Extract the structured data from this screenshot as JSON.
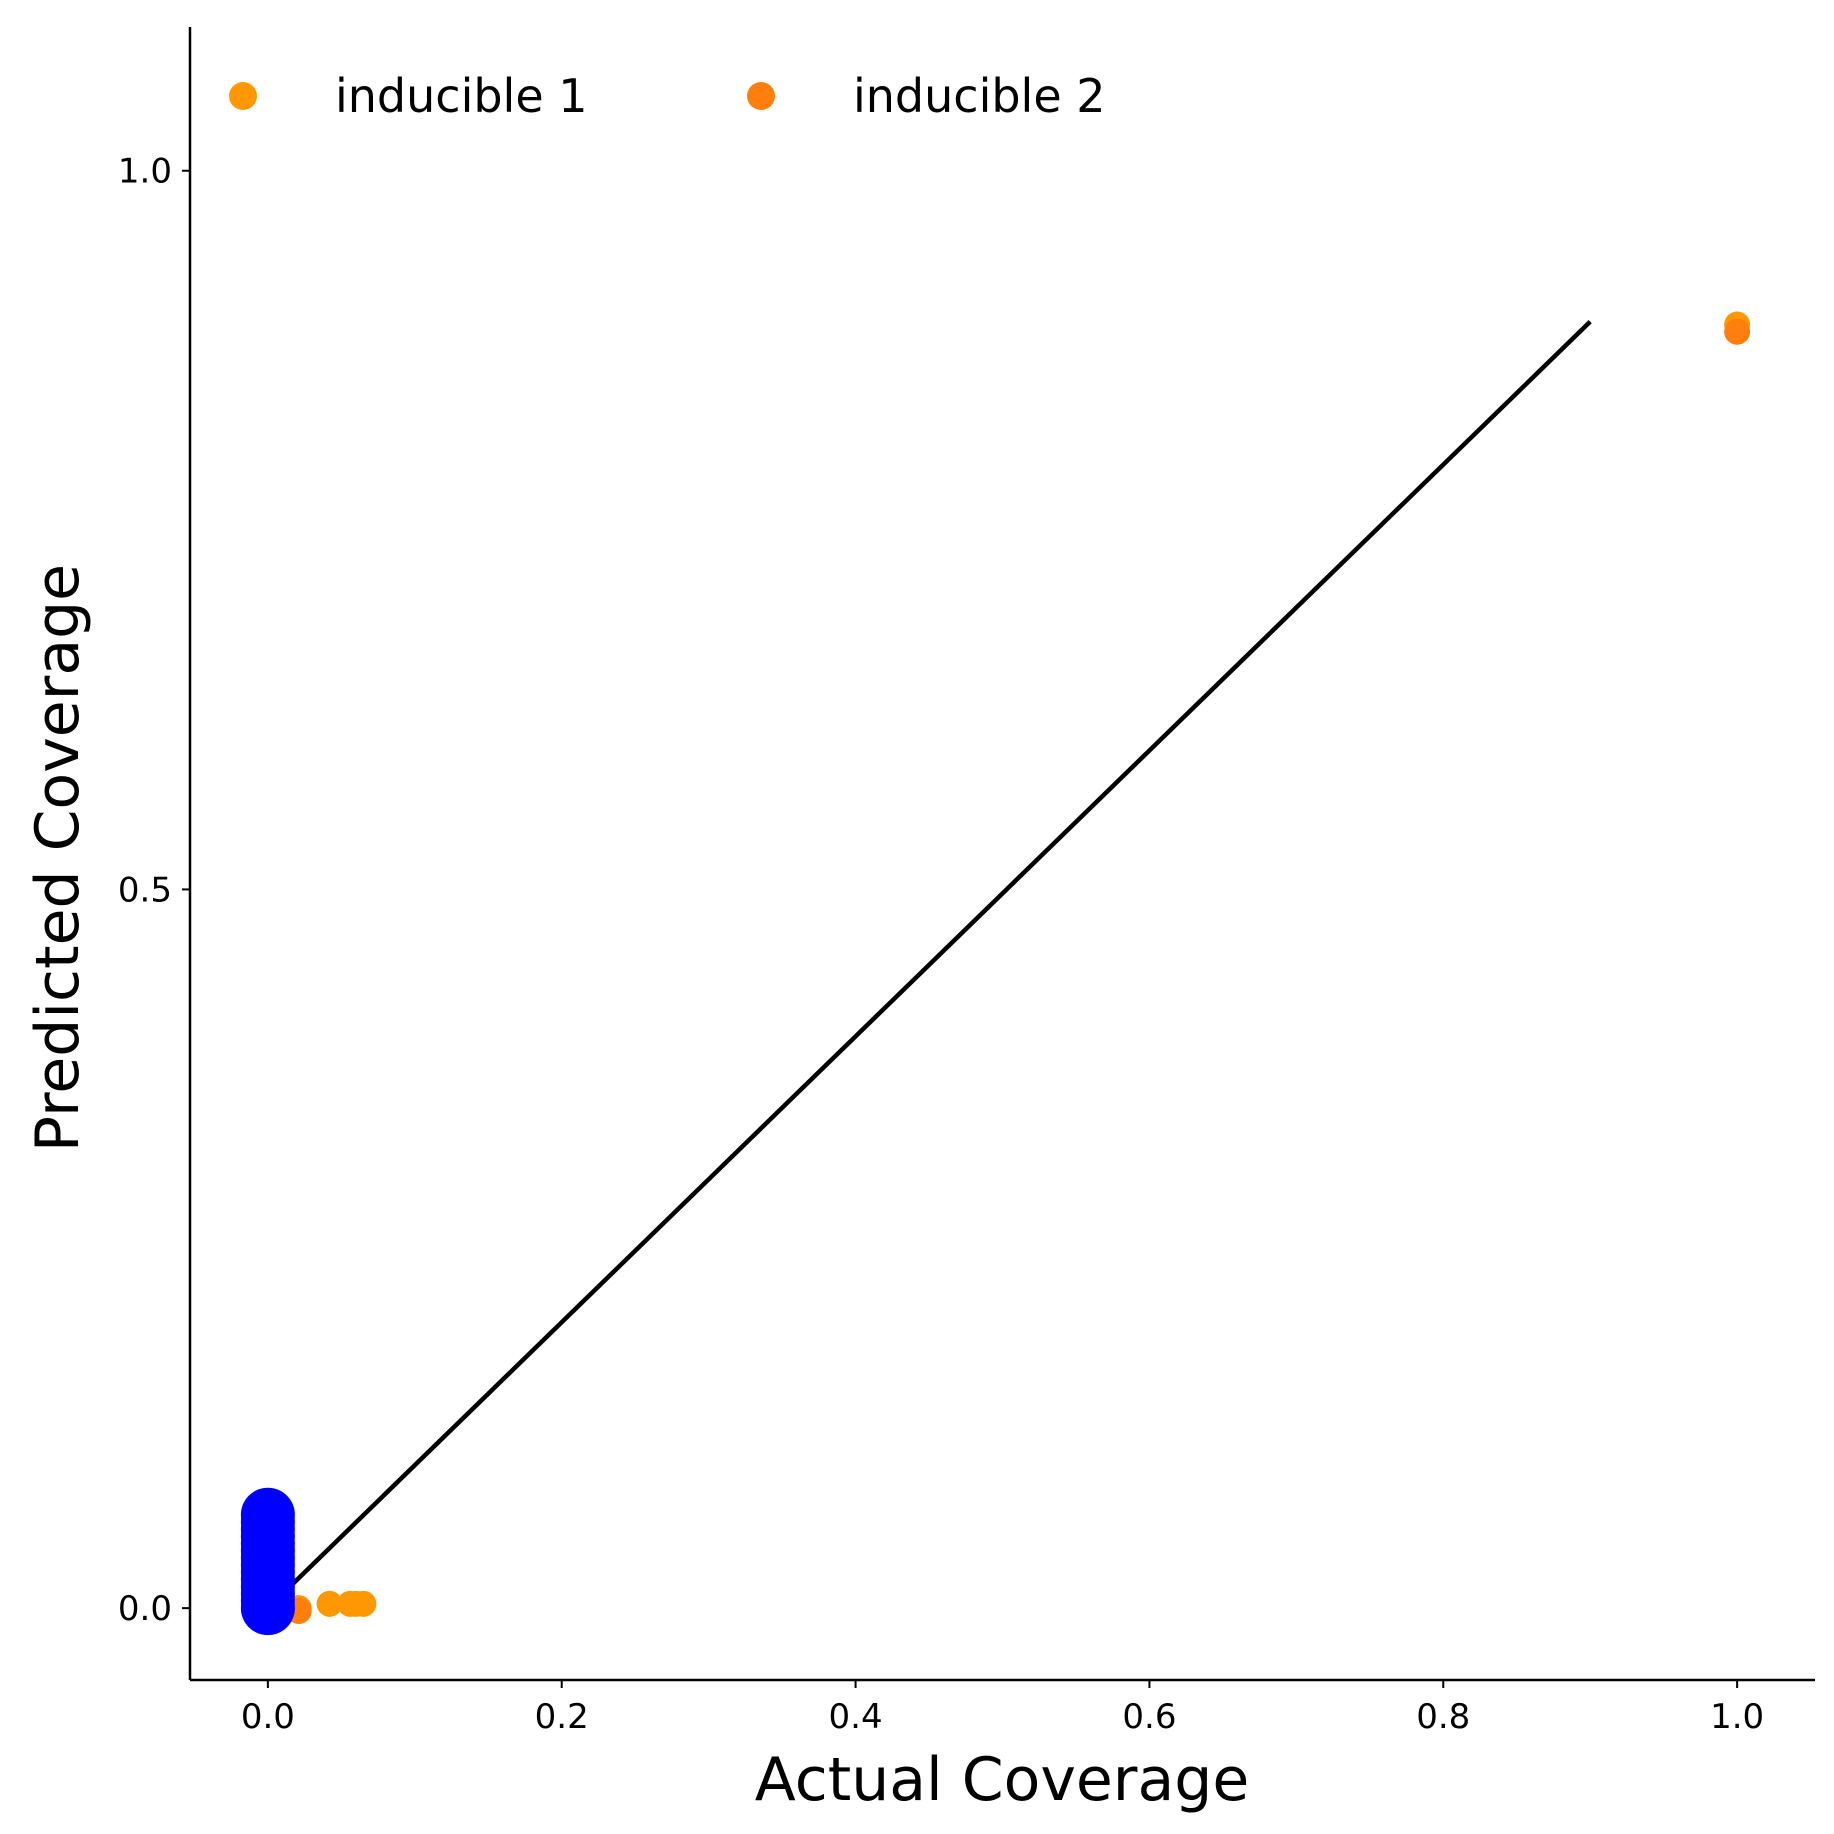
{
  "chart_data": {
    "type": "scatter",
    "title": "",
    "xlabel": "Actual Coverage",
    "ylabel": "Predicted Coverage",
    "xlim": [
      -0.053,
      1.053
    ],
    "ylim": [
      -0.05,
      1.1
    ],
    "xticks": [
      "0.0",
      "0.2",
      "0.4",
      "0.6",
      "0.8",
      "1.0"
    ],
    "xtick_values": [
      0.0,
      0.2,
      0.4,
      0.6,
      0.8,
      1.0
    ],
    "yticks": [
      "0.0",
      "0.5",
      "1.0"
    ],
    "ytick_values": [
      0.0,
      0.5,
      1.0
    ],
    "grid": false,
    "legend": {
      "placement": "top-left",
      "columns": 2
    },
    "reference_line": {
      "x": [
        0.0,
        0.9
      ],
      "y": [
        0.0,
        0.895
      ],
      "color": "#000000"
    },
    "series": [
      {
        "name": "inducible 1",
        "color": "#FF9800",
        "points": [
          {
            "x": 0.021,
            "y": 0.0
          },
          {
            "x": 0.042,
            "y": 0.003
          },
          {
            "x": 0.056,
            "y": 0.003
          },
          {
            "x": 0.06,
            "y": 0.003
          },
          {
            "x": 0.065,
            "y": 0.003
          },
          {
            "x": 1.0,
            "y": 0.893
          }
        ]
      },
      {
        "name": "inducible 2",
        "color": "#FF7F0E",
        "points": [
          {
            "x": 0.021,
            "y": -0.002
          },
          {
            "x": 1.0,
            "y": 0.888
          }
        ]
      },
      {
        "name": "",
        "color": "#0000FF",
        "points": [
          {
            "x": 0.0,
            "y": 0.0
          },
          {
            "x": 0.0,
            "y": 0.005
          },
          {
            "x": 0.0,
            "y": 0.01
          },
          {
            "x": 0.0,
            "y": 0.015
          },
          {
            "x": 0.0,
            "y": 0.02
          },
          {
            "x": 0.0,
            "y": 0.025
          },
          {
            "x": 0.0,
            "y": 0.03
          },
          {
            "x": 0.0,
            "y": 0.035
          },
          {
            "x": 0.0,
            "y": 0.04
          },
          {
            "x": 0.0,
            "y": 0.045
          },
          {
            "x": 0.0,
            "y": 0.05
          },
          {
            "x": 0.0,
            "y": 0.055
          },
          {
            "x": 0.0,
            "y": 0.06
          },
          {
            "x": 0.0,
            "y": 0.065
          }
        ]
      }
    ]
  }
}
